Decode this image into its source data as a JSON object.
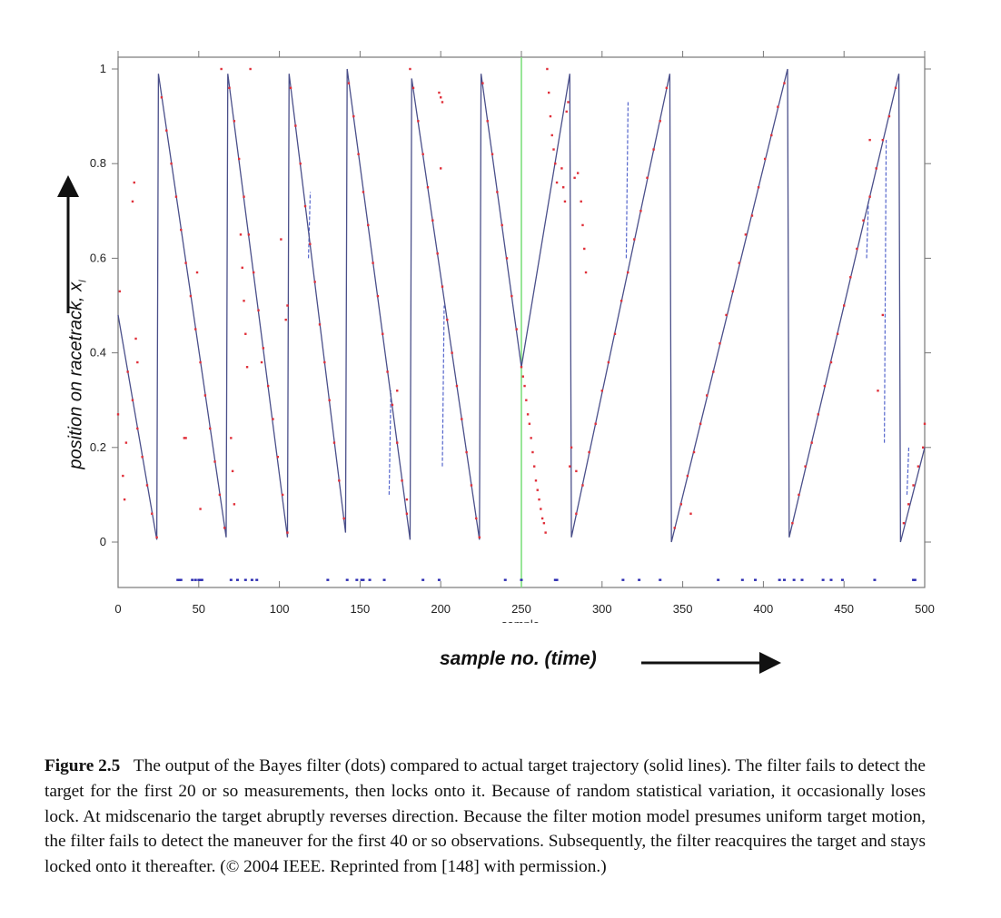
{
  "chart_data": {
    "type": "line",
    "xlabel": "sample no. (time)",
    "xlabel_inner": "sample",
    "ylabel": "position on racetrack, x",
    "ylabel_subscript": "l",
    "xlim": [
      0,
      500
    ],
    "ylim": [
      -0.1,
      1.03
    ],
    "xticks": [
      0,
      50,
      100,
      150,
      200,
      250,
      300,
      350,
      400,
      450,
      500
    ],
    "yticks": [
      0,
      0.2,
      0.4,
      0.6,
      0.8,
      1
    ],
    "ytick_labels": [
      "0",
      "0.2",
      "0.4",
      "0.6",
      "0.8",
      "1"
    ],
    "grid": false,
    "colors": {
      "trajectory": "#4a4f8a",
      "estimate": "#e0303a",
      "marker": "#2a2ab0",
      "maneuver_line": "#7ee07e",
      "dashed": "#5566cc"
    },
    "maneuver_x": 250,
    "trajectory": [
      [
        0,
        0.48
      ],
      [
        24,
        0.005
      ],
      [
        25,
        0.99
      ],
      [
        67,
        0.01
      ],
      [
        68,
        0.99
      ],
      [
        105,
        0.01
      ],
      [
        106,
        0.99
      ],
      [
        141,
        0.02
      ],
      [
        142,
        1.0
      ],
      [
        181,
        0.005
      ],
      [
        182,
        0.98
      ],
      [
        224,
        0.005
      ],
      [
        225,
        0.99
      ],
      [
        250,
        0.37
      ],
      [
        280,
        0.99
      ],
      [
        281,
        0.01
      ],
      [
        342,
        0.99
      ],
      [
        343,
        0.0
      ],
      [
        415,
        1.0
      ],
      [
        416,
        0.01
      ],
      [
        484,
        0.99
      ],
      [
        485,
        0.0
      ],
      [
        500,
        0.2
      ]
    ],
    "filter_estimate": [
      [
        0,
        0.27
      ],
      [
        1,
        0.53
      ],
      [
        3,
        0.14
      ],
      [
        4,
        0.09
      ],
      [
        5,
        0.21
      ],
      [
        6,
        0.36
      ],
      [
        9,
        0.72
      ],
      [
        10,
        0.76
      ],
      [
        11,
        0.43
      ],
      [
        12,
        0.38
      ],
      [
        9,
        0.3
      ],
      [
        12,
        0.24
      ],
      [
        15,
        0.18
      ],
      [
        18,
        0.12
      ],
      [
        21,
        0.06
      ],
      [
        24,
        0.01
      ],
      [
        27,
        0.94
      ],
      [
        30,
        0.87
      ],
      [
        33,
        0.8
      ],
      [
        36,
        0.73
      ],
      [
        39,
        0.66
      ],
      [
        41,
        0.22
      ],
      [
        42,
        0.22
      ],
      [
        42,
        0.59
      ],
      [
        45,
        0.52
      ],
      [
        48,
        0.45
      ],
      [
        49,
        0.57
      ],
      [
        51,
        0.38
      ],
      [
        51,
        0.07
      ],
      [
        54,
        0.31
      ],
      [
        57,
        0.24
      ],
      [
        60,
        0.17
      ],
      [
        63,
        0.1
      ],
      [
        64,
        1.0
      ],
      [
        66,
        0.03
      ],
      [
        69,
        0.96
      ],
      [
        70,
        0.22
      ],
      [
        71,
        0.15
      ],
      [
        72,
        0.08
      ],
      [
        72,
        0.89
      ],
      [
        75,
        0.81
      ],
      [
        76,
        0.65
      ],
      [
        77,
        0.58
      ],
      [
        78,
        0.51
      ],
      [
        78,
        0.73
      ],
      [
        79,
        0.44
      ],
      [
        80,
        0.37
      ],
      [
        81,
        0.65
      ],
      [
        82,
        1.0
      ],
      [
        84,
        0.57
      ],
      [
        87,
        0.49
      ],
      [
        89,
        0.38
      ],
      [
        90,
        0.41
      ],
      [
        93,
        0.33
      ],
      [
        96,
        0.26
      ],
      [
        99,
        0.18
      ],
      [
        101,
        0.64
      ],
      [
        102,
        0.1
      ],
      [
        104,
        0.47
      ],
      [
        105,
        0.5
      ],
      [
        105,
        0.02
      ],
      [
        107,
        0.96
      ],
      [
        110,
        0.88
      ],
      [
        113,
        0.8
      ],
      [
        116,
        0.71
      ],
      [
        119,
        0.63
      ],
      [
        122,
        0.55
      ],
      [
        125,
        0.46
      ],
      [
        128,
        0.38
      ],
      [
        131,
        0.3
      ],
      [
        134,
        0.21
      ],
      [
        137,
        0.13
      ],
      [
        140,
        0.05
      ],
      [
        143,
        0.97
      ],
      [
        146,
        0.9
      ],
      [
        149,
        0.82
      ],
      [
        152,
        0.74
      ],
      [
        155,
        0.67
      ],
      [
        158,
        0.59
      ],
      [
        161,
        0.52
      ],
      [
        164,
        0.44
      ],
      [
        167,
        0.36
      ],
      [
        170,
        0.29
      ],
      [
        173,
        0.21
      ],
      [
        173,
        0.32
      ],
      [
        176,
        0.13
      ],
      [
        179,
        0.06
      ],
      [
        179,
        0.09
      ],
      [
        181,
        1.0
      ],
      [
        183,
        0.96
      ],
      [
        186,
        0.89
      ],
      [
        189,
        0.82
      ],
      [
        192,
        0.75
      ],
      [
        195,
        0.68
      ],
      [
        198,
        0.61
      ],
      [
        199,
        0.95
      ],
      [
        200,
        0.94
      ],
      [
        200,
        0.79
      ],
      [
        201,
        0.93
      ],
      [
        201,
        0.54
      ],
      [
        204,
        0.47
      ],
      [
        207,
        0.4
      ],
      [
        210,
        0.33
      ],
      [
        213,
        0.26
      ],
      [
        216,
        0.19
      ],
      [
        219,
        0.12
      ],
      [
        222,
        0.05
      ],
      [
        224,
        0.01
      ],
      [
        226,
        0.97
      ],
      [
        229,
        0.89
      ],
      [
        232,
        0.82
      ],
      [
        235,
        0.74
      ],
      [
        238,
        0.67
      ],
      [
        241,
        0.6
      ],
      [
        244,
        0.52
      ],
      [
        247,
        0.45
      ],
      [
        250,
        0.37
      ],
      [
        251,
        0.35
      ],
      [
        252,
        0.33
      ],
      [
        253,
        0.3
      ],
      [
        254,
        0.27
      ],
      [
        255,
        0.25
      ],
      [
        256,
        0.22
      ],
      [
        257,
        0.19
      ],
      [
        258,
        0.16
      ],
      [
        259,
        0.13
      ],
      [
        260,
        0.11
      ],
      [
        261,
        0.09
      ],
      [
        262,
        0.07
      ],
      [
        263,
        0.05
      ],
      [
        264,
        0.04
      ],
      [
        265,
        0.02
      ],
      [
        266,
        1.0
      ],
      [
        267,
        0.95
      ],
      [
        268,
        0.9
      ],
      [
        269,
        0.86
      ],
      [
        270,
        0.83
      ],
      [
        271,
        0.8
      ],
      [
        272,
        0.76
      ],
      [
        275,
        0.79
      ],
      [
        276,
        0.75
      ],
      [
        277,
        0.72
      ],
      [
        278,
        0.91
      ],
      [
        279,
        0.93
      ],
      [
        280,
        0.16
      ],
      [
        281,
        0.2
      ],
      [
        283,
        0.77
      ],
      [
        284,
        0.15
      ],
      [
        285,
        0.78
      ],
      [
        287,
        0.72
      ],
      [
        288,
        0.67
      ],
      [
        289,
        0.62
      ],
      [
        290,
        0.57
      ],
      [
        284,
        0.06
      ],
      [
        288,
        0.12
      ],
      [
        292,
        0.19
      ],
      [
        296,
        0.25
      ],
      [
        300,
        0.32
      ],
      [
        304,
        0.38
      ],
      [
        308,
        0.44
      ],
      [
        312,
        0.51
      ],
      [
        316,
        0.57
      ],
      [
        320,
        0.64
      ],
      [
        324,
        0.7
      ],
      [
        328,
        0.77
      ],
      [
        332,
        0.83
      ],
      [
        336,
        0.89
      ],
      [
        340,
        0.96
      ],
      [
        345,
        0.03
      ],
      [
        349,
        0.08
      ],
      [
        353,
        0.14
      ],
      [
        355,
        0.06
      ],
      [
        357,
        0.19
      ],
      [
        361,
        0.25
      ],
      [
        365,
        0.31
      ],
      [
        369,
        0.36
      ],
      [
        373,
        0.42
      ],
      [
        377,
        0.48
      ],
      [
        381,
        0.53
      ],
      [
        385,
        0.59
      ],
      [
        389,
        0.65
      ],
      [
        393,
        0.69
      ],
      [
        397,
        0.75
      ],
      [
        401,
        0.81
      ],
      [
        405,
        0.86
      ],
      [
        409,
        0.92
      ],
      [
        413,
        0.97
      ],
      [
        418,
        0.04
      ],
      [
        422,
        0.1
      ],
      [
        426,
        0.16
      ],
      [
        430,
        0.21
      ],
      [
        434,
        0.27
      ],
      [
        438,
        0.33
      ],
      [
        442,
        0.38
      ],
      [
        446,
        0.44
      ],
      [
        450,
        0.5
      ],
      [
        454,
        0.56
      ],
      [
        458,
        0.62
      ],
      [
        462,
        0.68
      ],
      [
        466,
        0.73
      ],
      [
        466,
        0.85
      ],
      [
        470,
        0.79
      ],
      [
        471,
        0.32
      ],
      [
        474,
        0.48
      ],
      [
        474,
        0.85
      ],
      [
        478,
        0.9
      ],
      [
        482,
        0.96
      ],
      [
        487,
        0.04
      ],
      [
        490,
        0.08
      ],
      [
        493,
        0.12
      ],
      [
        496,
        0.16
      ],
      [
        499,
        0.2
      ],
      [
        500,
        0.25
      ]
    ],
    "dashed_excursions": [
      [
        118,
        0.6,
        0.74
      ],
      [
        168,
        0.1,
        0.32
      ],
      [
        201,
        0.16,
        0.5
      ],
      [
        315,
        0.6,
        0.93
      ],
      [
        464,
        0.6,
        0.72
      ],
      [
        475,
        0.21,
        0.85
      ],
      [
        489,
        0.1,
        0.2
      ]
    ],
    "detection_markers_y": -0.08,
    "detection_markers_x": [
      37,
      38,
      39,
      46,
      48,
      50,
      51,
      52,
      70,
      74,
      79,
      83,
      86,
      130,
      142,
      148,
      151,
      152,
      156,
      165,
      189,
      199,
      240,
      250,
      271,
      272,
      313,
      323,
      336,
      372,
      387,
      395,
      410,
      413,
      419,
      424,
      437,
      442,
      449,
      469,
      493,
      494
    ]
  },
  "caption": {
    "label": "Figure 2.5",
    "text": "The output of the Bayes filter (dots) compared to actual target trajectory (solid lines). The filter fails to detect the target for the first 20 or so measurements, then locks onto it. Because of random statistical variation, it occasionally loses lock. At midscenario the target abruptly reverses direction. Because the filter motion model presumes uniform target motion, the filter fails to detect the maneuver for the first 40 or so observations. Subsequently, the filter reacquires the target and stays locked onto it thereafter. (© 2004 IEEE. Reprinted from [148] with permission.)"
  }
}
